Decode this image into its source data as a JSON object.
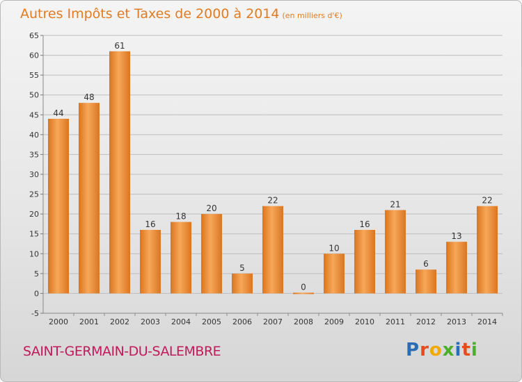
{
  "title": "Autres Impôts et Taxes de 2000 à 2014",
  "unit": "(en milliers d'€)",
  "commune": "SAINT-GERMAIN-DU-SALEMBRE",
  "logo": {
    "text": "Proxiti",
    "letter_colors": [
      "#2a6db5",
      "#e8491d",
      "#f2a900",
      "#4caf2a",
      "#2a6db5",
      "#e8491d",
      "#4caf2a"
    ]
  },
  "colors": {
    "bar_light": "#f8a758",
    "bar_dark": "#d97520",
    "grid": "#bdbdbd",
    "title": "#e07b22",
    "commune": "#c2185b"
  },
  "chart_data": {
    "type": "bar",
    "categories": [
      "2000",
      "2001",
      "2002",
      "2003",
      "2004",
      "2005",
      "2006",
      "2007",
      "2008",
      "2009",
      "2010",
      "2011",
      "2012",
      "2013",
      "2014"
    ],
    "values": [
      44,
      48,
      61,
      16,
      18,
      20,
      5,
      22,
      0,
      10,
      16,
      21,
      6,
      13,
      22
    ],
    "yticks": [
      -5,
      0,
      5,
      10,
      15,
      20,
      25,
      30,
      35,
      40,
      45,
      50,
      55,
      60,
      65
    ],
    "ylim": [
      -5,
      65
    ],
    "grid": true
  }
}
